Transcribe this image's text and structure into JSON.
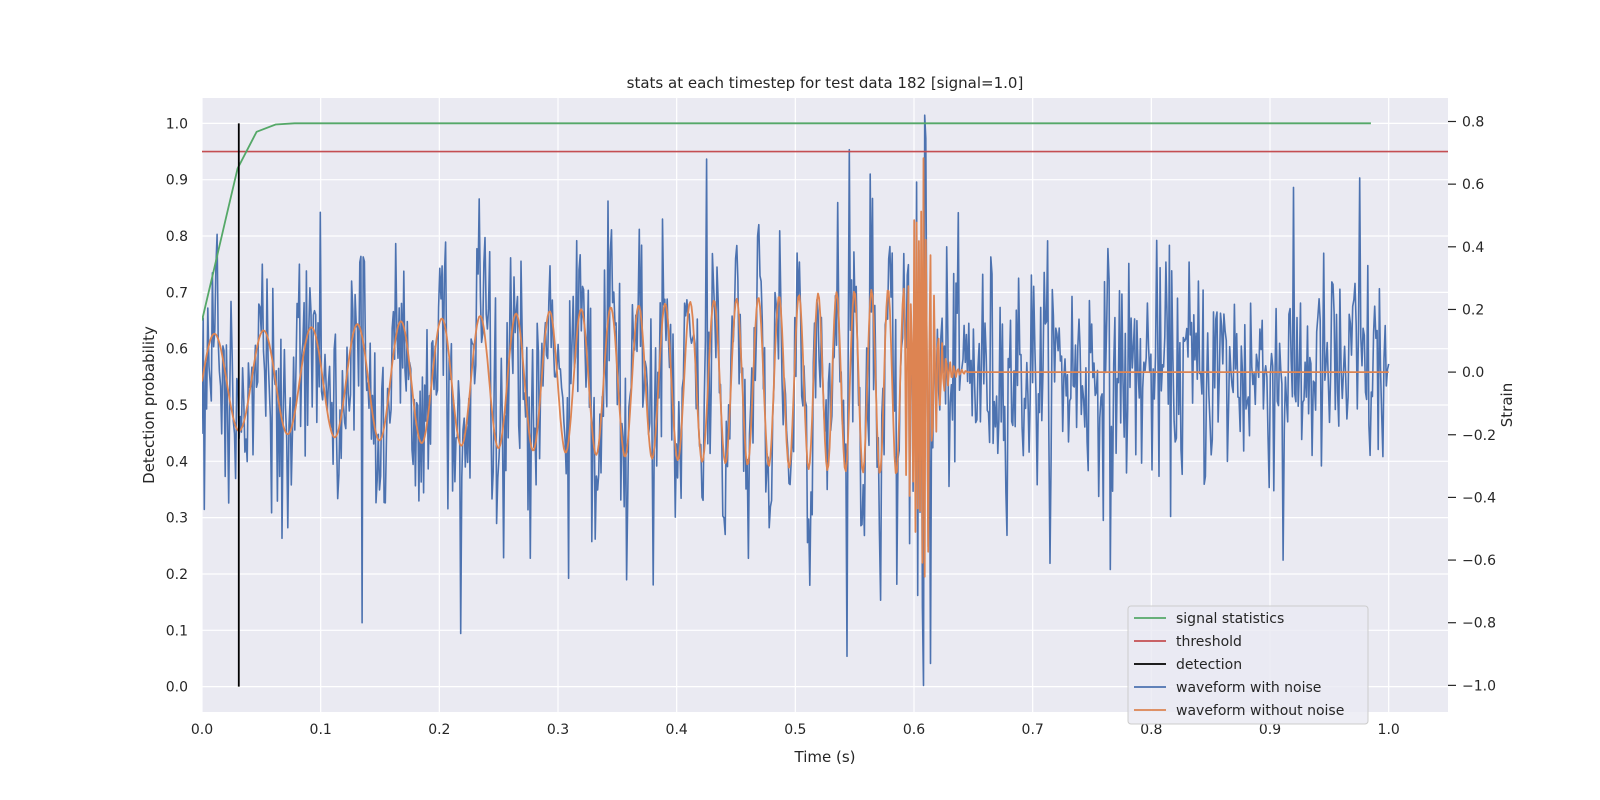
{
  "chart_data": {
    "type": "line",
    "title": "stats at each timestep for test data 182 [signal=1.0]",
    "xlabel": "Time (s)",
    "ylabel_left": "Detection probability",
    "ylabel_right": "Strain",
    "xlim": [
      0.0,
      1.05
    ],
    "ylim_left": [
      -0.045,
      1.045
    ],
    "ylim_right": [
      -1.085,
      0.875
    ],
    "x_ticks": [
      0.0,
      0.1,
      0.2,
      0.3,
      0.4,
      0.5,
      0.6,
      0.7,
      0.8,
      0.9,
      1.0
    ],
    "x_tick_labels": [
      "0.0",
      "0.1",
      "0.2",
      "0.3",
      "0.4",
      "0.5",
      "0.6",
      "0.7",
      "0.8",
      "0.9",
      "1.0"
    ],
    "y_left_ticks": [
      0.0,
      0.1,
      0.2,
      0.3,
      0.4,
      0.5,
      0.6,
      0.7,
      0.8,
      0.9,
      1.0
    ],
    "y_left_tick_labels": [
      "0.0",
      "0.1",
      "0.2",
      "0.3",
      "0.4",
      "0.5",
      "0.6",
      "0.7",
      "0.8",
      "0.9",
      "1.0"
    ],
    "y_right_ticks": [
      -1.0,
      -0.8,
      -0.6,
      -0.4,
      -0.2,
      0.0,
      0.2,
      0.4,
      0.6,
      0.8
    ],
    "y_right_tick_labels": [
      "−1.0",
      "−0.8",
      "−0.6",
      "−0.4",
      "−0.2",
      "0.0",
      "0.2",
      "0.4",
      "0.6",
      "0.8"
    ],
    "grid": true,
    "legend_position": "lower-right",
    "series": [
      {
        "name": "signal statistics",
        "axis": "left",
        "color": "#55a868",
        "x": [
          0.0,
          0.01,
          0.02,
          0.03,
          0.046,
          0.062,
          0.078,
          0.1,
          0.2,
          0.4,
          0.6,
          0.8,
          0.985
        ],
        "y": [
          0.65,
          0.74,
          0.83,
          0.92,
          0.985,
          0.998,
          1.0,
          1.0,
          1.0,
          1.0,
          1.0,
          1.0,
          1.0
        ]
      },
      {
        "name": "threshold",
        "axis": "left",
        "color": "#c44e52",
        "x": [
          0.0,
          1.05
        ],
        "y": [
          0.95,
          0.95
        ]
      },
      {
        "name": "detection",
        "axis": "left",
        "color": "#000000",
        "x": [
          0.031,
          0.031
        ],
        "y": [
          0.0,
          1.0
        ]
      },
      {
        "name": "waveform with noise",
        "axis": "right",
        "color": "#4c72b0",
        "generated": "gaussian noise samples (std 0.18) spanning 0.0-1.0 s at ~1024 Hz, plus the noiseless waveform",
        "x_range": [
          0.0,
          1.0
        ],
        "noise_std": 0.18,
        "peaks": [
          {
            "x": 0.608,
            "y": 0.82
          },
          {
            "x": 0.607,
            "y": -1.0
          },
          {
            "x": 0.613,
            "y": -0.93
          },
          {
            "x": 0.135,
            "y": -0.8
          },
          {
            "x": 0.545,
            "y": 0.71
          },
          {
            "x": 0.425,
            "y": 0.68
          },
          {
            "x": 0.765,
            "y": -0.63
          },
          {
            "x": 0.91,
            "y": -0.6
          },
          {
            "x": 0.975,
            "y": 0.62
          }
        ]
      },
      {
        "name": "waveform without noise",
        "axis": "right",
        "color": "#dd8452",
        "generated": "gravitational-wave chirp: amplitude grows from 0.15 to ~0.3 with rising frequency until merger at 0.612 s (peak 0.78, min -0.54), ringdown to 0 by 0.645 s",
        "x_range": [
          0.0,
          1.0
        ],
        "start_freq_hz": 24,
        "end_freq_hz": 75,
        "start_amplitude": 0.15,
        "pre_merger_amplitude": 0.3,
        "merger_time": 0.612,
        "merger_peak": 0.78,
        "merger_min": -0.54,
        "ringdown_end": 0.645
      }
    ]
  }
}
